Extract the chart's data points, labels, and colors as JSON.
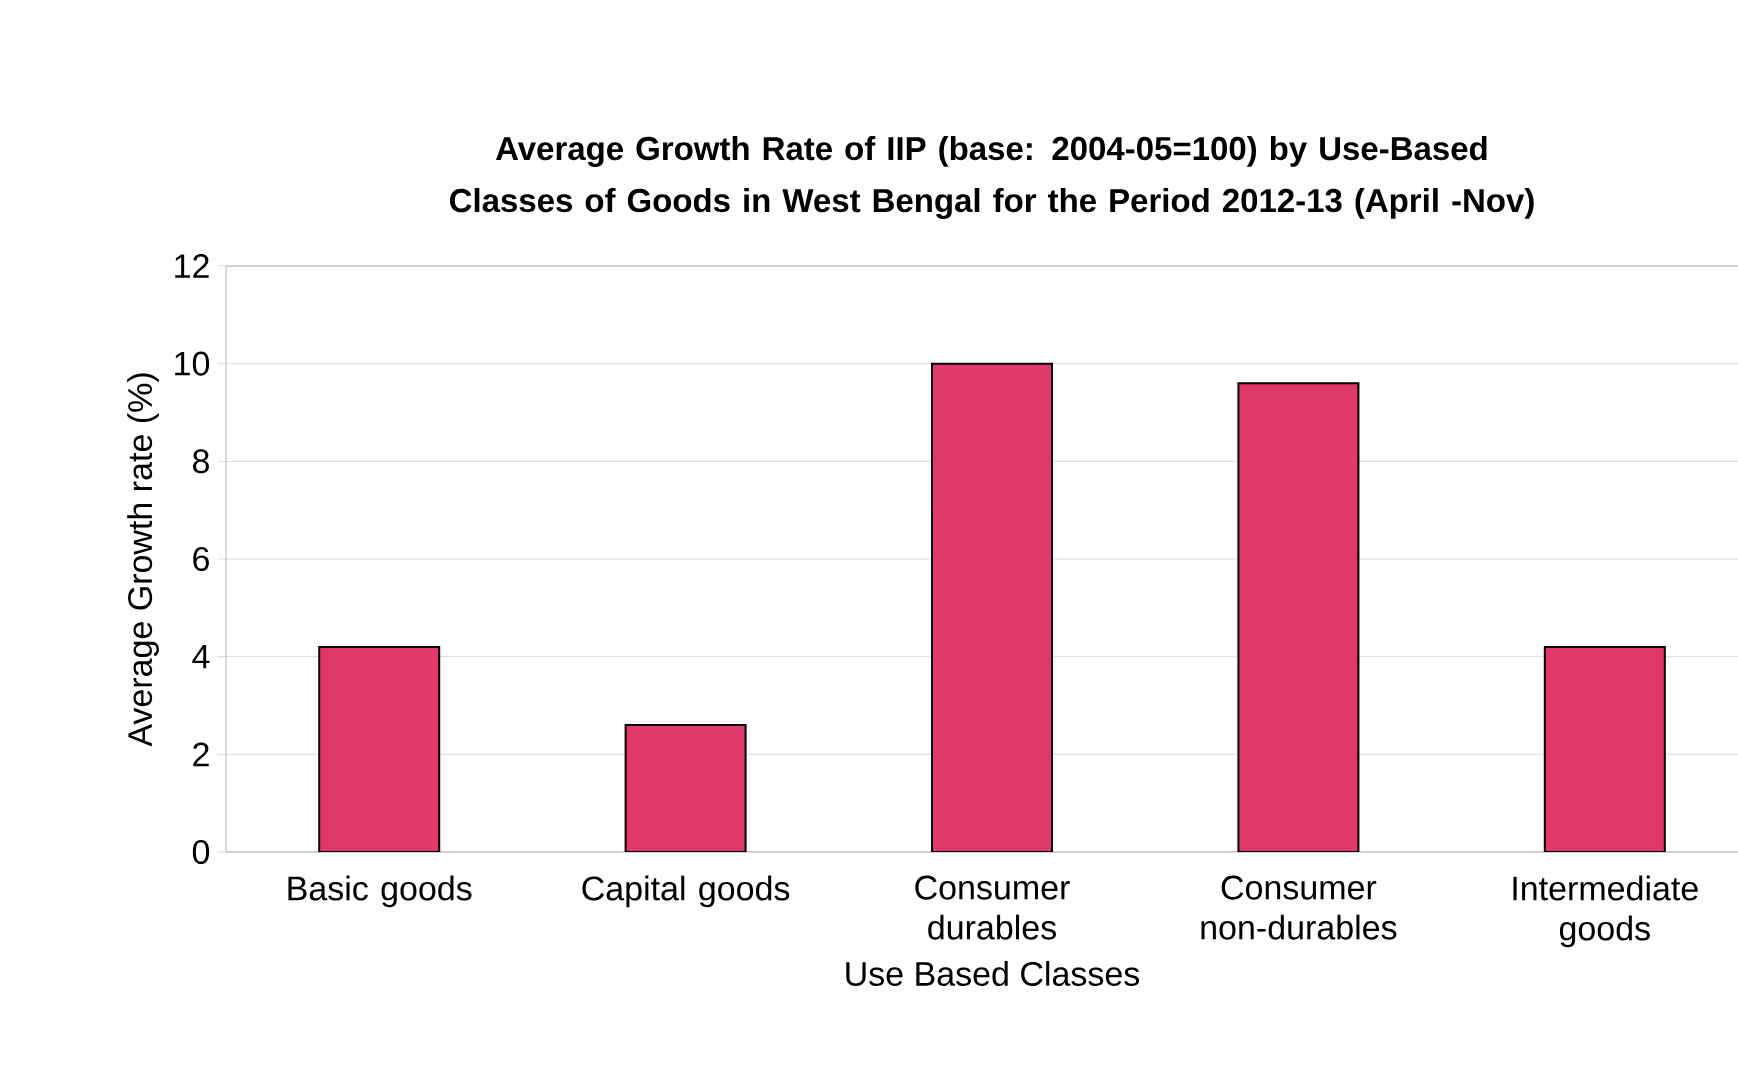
{
  "chart_data": {
    "type": "bar",
    "title": "Average Growth Rate of IIP (base: 2004-05=100) by Use-Based Classes of Goods in West Bengal for the Period 2012-13 (April -Nov)",
    "xlabel": "Use Based Classes",
    "ylabel": "Average Growth rate (%)",
    "categories": [
      "Basic goods",
      "Capital goods",
      "Consumer durables",
      "Consumer non-durables",
      "Intermediate goods"
    ],
    "values": [
      4.2,
      2.6,
      10.0,
      9.6,
      4.2
    ],
    "color": "#e0386a",
    "ylim": [
      0,
      12
    ],
    "yticks": [
      0,
      2,
      4,
      6,
      8,
      10,
      12
    ],
    "grid": "y"
  }
}
